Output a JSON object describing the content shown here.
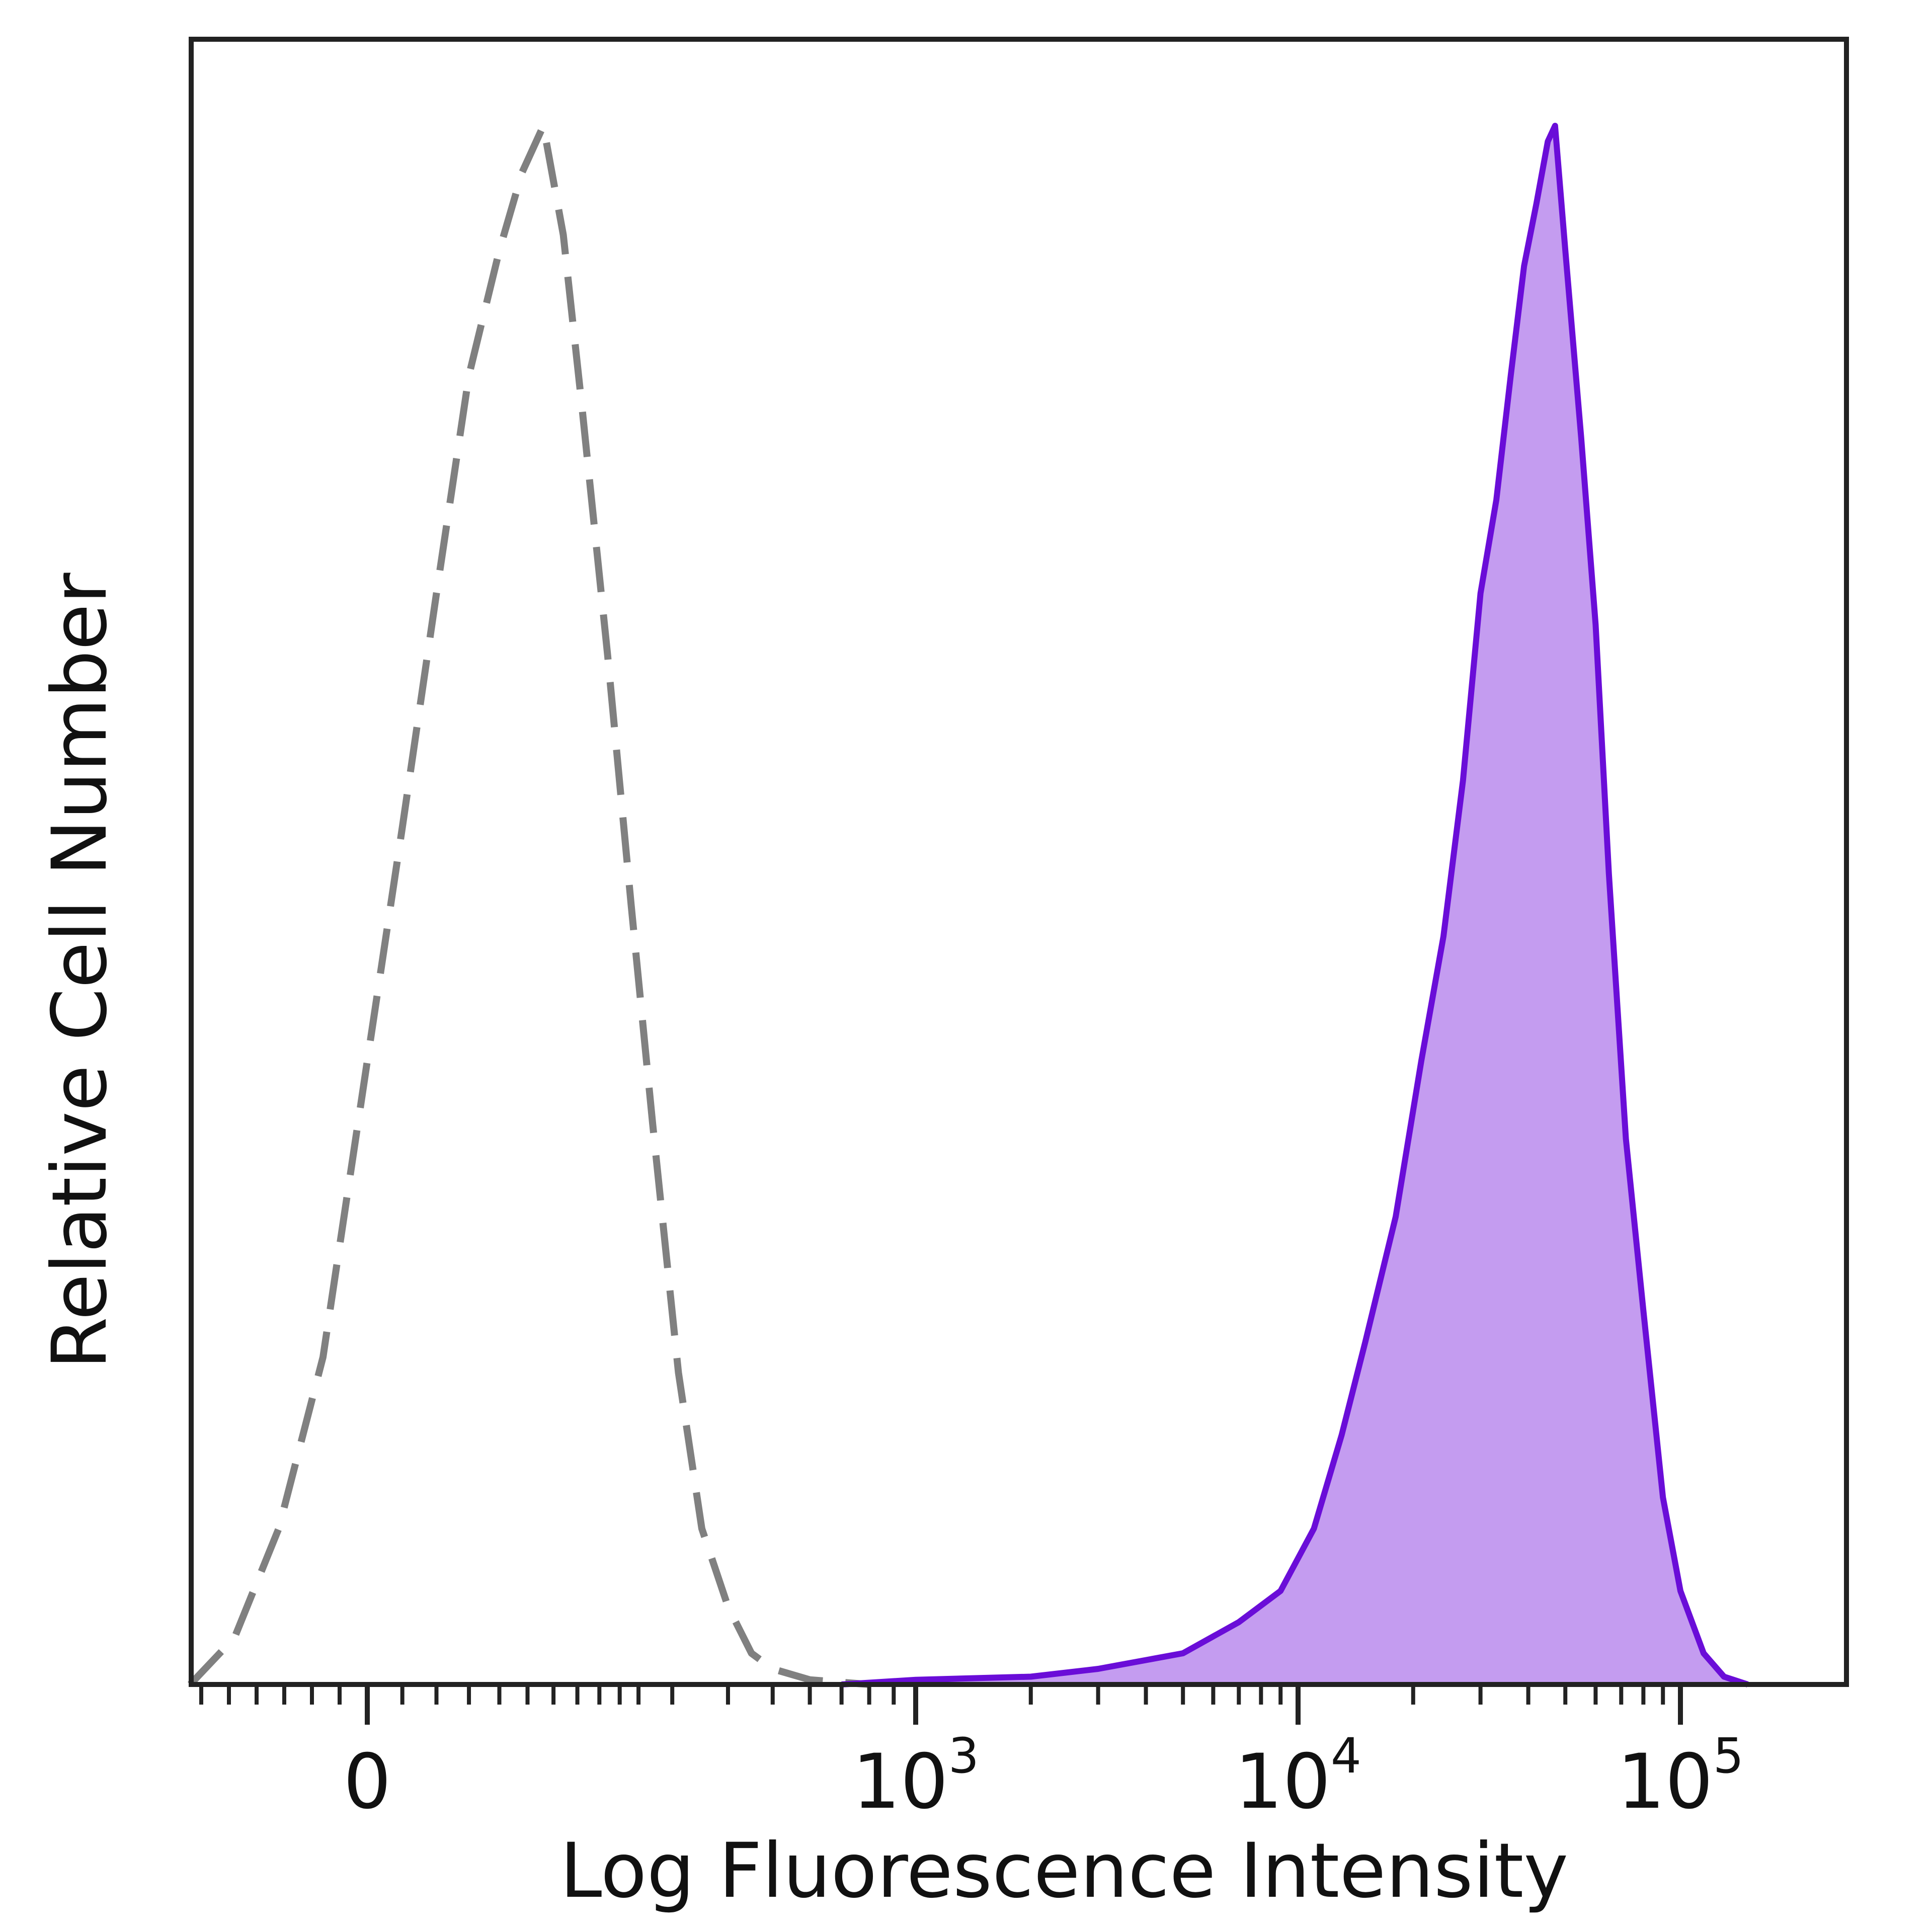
{
  "chart_data": {
    "type": "area",
    "title": "",
    "xlabel": "Log Fluorescence Intensity",
    "ylabel": "Relative Cell Number",
    "x_scale": "biexponential (linear near 0, log above)",
    "x_tick_labels": [
      {
        "value": 0,
        "base": "0",
        "exp": ""
      },
      {
        "value": 1000,
        "base": "10",
        "exp": "3"
      },
      {
        "value": 10000,
        "base": "10",
        "exp": "4"
      },
      {
        "value": 100000,
        "base": "10",
        "exp": "5"
      }
    ],
    "xlim": [
      -200,
      200000
    ],
    "ylim": [
      0,
      100
    ],
    "grid": false,
    "legend": "none",
    "series": [
      {
        "style": "dashed outline (isotype control)",
        "color": "#808080",
        "points": [
          [
            -160,
            0
          ],
          [
            -120,
            3
          ],
          [
            -80,
            10
          ],
          [
            -40,
            21
          ],
          [
            0,
            40
          ],
          [
            25,
            55
          ],
          [
            50,
            70
          ],
          [
            75,
            84
          ],
          [
            100,
            92
          ],
          [
            120,
            97
          ],
          [
            140,
            100
          ],
          [
            160,
            93
          ],
          [
            180,
            82
          ],
          [
            210,
            66
          ],
          [
            240,
            50
          ],
          [
            270,
            36
          ],
          [
            310,
            20
          ],
          [
            350,
            10
          ],
          [
            400,
            5
          ],
          [
            450,
            2
          ],
          [
            500,
            1
          ],
          [
            600,
            0.3
          ],
          [
            800,
            0
          ]
        ]
      },
      {
        "style": "filled",
        "color": "#6a0dd8",
        "fill": "#c49cf0",
        "points": [
          [
            700,
            0
          ],
          [
            1000,
            0.3
          ],
          [
            2000,
            0.5
          ],
          [
            3000,
            1
          ],
          [
            5000,
            2
          ],
          [
            7000,
            4
          ],
          [
            9000,
            6
          ],
          [
            11000,
            10
          ],
          [
            13000,
            16
          ],
          [
            15000,
            22
          ],
          [
            18000,
            30
          ],
          [
            21000,
            40
          ],
          [
            24000,
            48
          ],
          [
            27000,
            58
          ],
          [
            30000,
            70
          ],
          [
            33000,
            76
          ],
          [
            36000,
            84
          ],
          [
            39000,
            91
          ],
          [
            42000,
            95
          ],
          [
            45000,
            99
          ],
          [
            47000,
            100
          ],
          [
            50000,
            92
          ],
          [
            55000,
            80
          ],
          [
            60000,
            68
          ],
          [
            65000,
            52
          ],
          [
            72000,
            35
          ],
          [
            80000,
            24
          ],
          [
            90000,
            12
          ],
          [
            100000,
            6
          ],
          [
            115000,
            2
          ],
          [
            130000,
            0.5
          ],
          [
            150000,
            0
          ]
        ]
      }
    ]
  }
}
